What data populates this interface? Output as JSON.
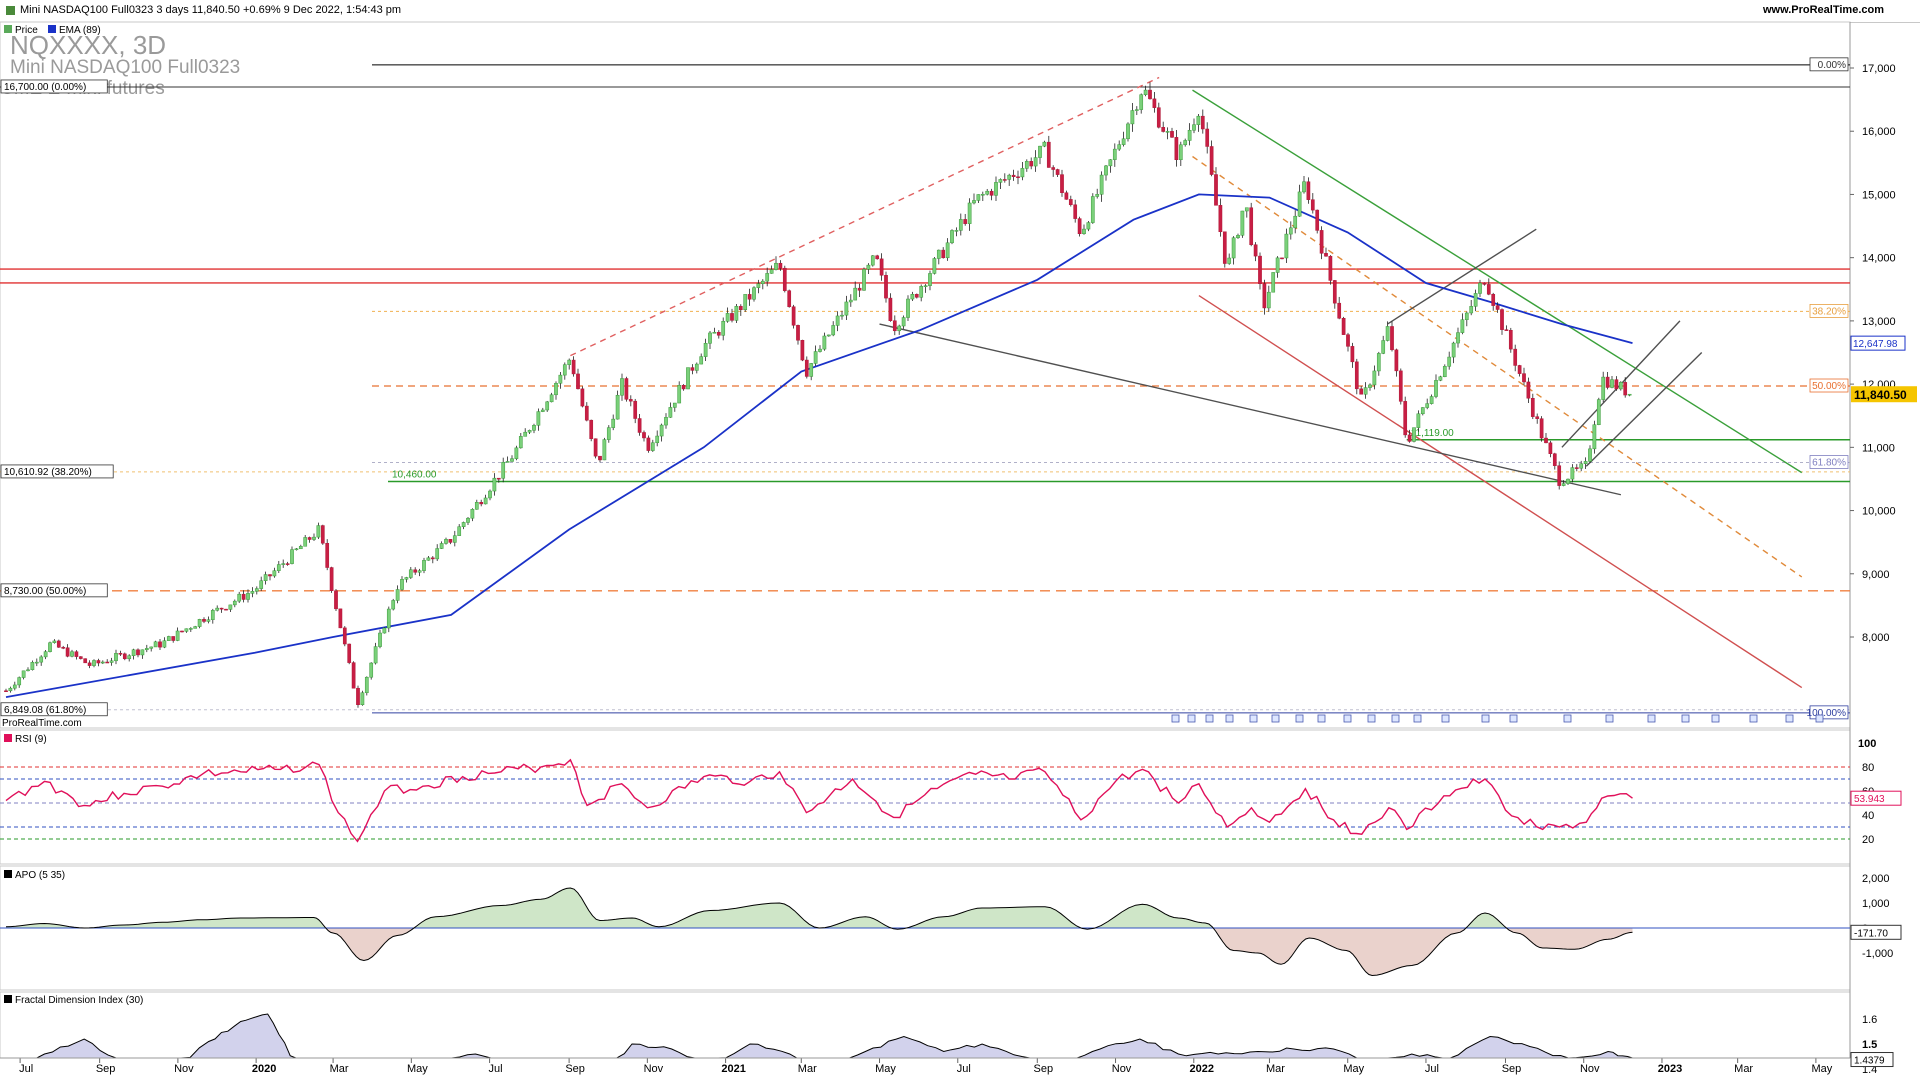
{
  "header": {
    "title": "Mini NASDAQ100 Full0323 3 days 11,840.50 +0.69% 9 Dec 2022, 1:54:43 pm",
    "site": "www.ProRealTime.com"
  },
  "main_panel": {
    "legend": [
      {
        "label": "Price",
        "color": "#5aaa5a"
      },
      {
        "label": "EMA (89)",
        "color": "#1a32c8"
      }
    ],
    "watermark": {
      "symbol": "NQXXXX, 3D",
      "name": "Mini NASDAQ100 Full0323",
      "exchange": "CME E-mini futures"
    },
    "credit": "ProRealTime.com",
    "left_labels": [
      "16,700.00 (0.00%)",
      "10,610.92 (38.20%)",
      "8,730.00 (50.00%)",
      "6,849.08 (61.80%)"
    ],
    "fib_right_labels": [
      "0.00%",
      "38.20%",
      "50.00%",
      "61.80%",
      "100.00%"
    ],
    "line_labels": [
      "11,119.00",
      "10,460.00"
    ],
    "price_ticks": [
      "17,000",
      "16,000",
      "15,000",
      "14,000",
      "13,000",
      "12,000",
      "11,000",
      "10,000",
      "9,000",
      "8,000"
    ],
    "ema_value": "12,647.98",
    "last_price": "11,840.50"
  },
  "rsi_panel": {
    "title": "RSI (9)",
    "ticks": [
      "100",
      "80",
      "60",
      "40",
      "20"
    ],
    "value": "53.943"
  },
  "apo_panel": {
    "title": "APO (5 35)",
    "ticks": [
      "2,000",
      "1,000",
      "0",
      "-1,000"
    ],
    "value": "-171.70"
  },
  "fdi_panel": {
    "title": "Fractal Dimension Index (30)",
    "ticks": [
      "1.6",
      "1.5",
      "1.4"
    ],
    "value": "1.4379"
  },
  "x_axis": [
    {
      "label": "Jul",
      "bold": false
    },
    {
      "label": "Sep",
      "bold": false
    },
    {
      "label": "Nov",
      "bold": false
    },
    {
      "label": "2020",
      "bold": true
    },
    {
      "label": "Mar",
      "bold": false
    },
    {
      "label": "May",
      "bold": false
    },
    {
      "label": "Jul",
      "bold": false
    },
    {
      "label": "Sep",
      "bold": false
    },
    {
      "label": "Nov",
      "bold": false
    },
    {
      "label": "2021",
      "bold": true
    },
    {
      "label": "Mar",
      "bold": false
    },
    {
      "label": "May",
      "bold": false
    },
    {
      "label": "Jul",
      "bold": false
    },
    {
      "label": "Sep",
      "bold": false
    },
    {
      "label": "Nov",
      "bold": false
    },
    {
      "label": "2022",
      "bold": true
    },
    {
      "label": "Mar",
      "bold": false
    },
    {
      "label": "May",
      "bold": false
    },
    {
      "label": "Jul",
      "bold": false
    },
    {
      "label": "Sep",
      "bold": false
    },
    {
      "label": "Nov",
      "bold": false
    },
    {
      "label": "2023",
      "bold": true
    },
    {
      "label": "Mar",
      "bold": false
    },
    {
      "label": "May",
      "bold": false
    }
  ],
  "chart_data": {
    "type": "candlestick",
    "instrument": "Mini NASDAQ100 Full0323",
    "timeframe": "3D",
    "ylim": [
      6800,
      17200
    ],
    "price_path": [
      [
        "2019-06-20",
        7150
      ],
      [
        "2019-07-25",
        7900
      ],
      [
        "2019-08-25",
        7550
      ],
      [
        "2019-09-25",
        7750
      ],
      [
        "2019-10-20",
        7900
      ],
      [
        "2019-11-25",
        8350
      ],
      [
        "2019-12-31",
        8750
      ],
      [
        "2020-02-19",
        9700
      ],
      [
        "2020-03-20",
        6950
      ],
      [
        "2020-04-20",
        8800
      ],
      [
        "2020-06-01",
        9550
      ],
      [
        "2020-07-20",
        10900
      ],
      [
        "2020-09-02",
        12420
      ],
      [
        "2020-09-23",
        10700
      ],
      [
        "2020-10-12",
        12000
      ],
      [
        "2020-11-01",
        11000
      ],
      [
        "2020-12-15",
        12600
      ],
      [
        "2021-02-12",
        13900
      ],
      [
        "2021-03-05",
        12200
      ],
      [
        "2021-04-28",
        14000
      ],
      [
        "2021-05-12",
        12900
      ],
      [
        "2021-07-15",
        14900
      ],
      [
        "2021-09-07",
        15700
      ],
      [
        "2021-10-05",
        14400
      ],
      [
        "2021-11-22",
        16700
      ],
      [
        "2021-12-20",
        15600
      ],
      [
        "2022-01-05",
        16400
      ],
      [
        "2022-01-27",
        13800
      ],
      [
        "2022-02-10",
        14900
      ],
      [
        "2022-02-24",
        13200
      ],
      [
        "2022-03-29",
        15200
      ],
      [
        "2022-05-12",
        11700
      ],
      [
        "2022-06-02",
        12900
      ],
      [
        "2022-06-16",
        11070
      ],
      [
        "2022-08-16",
        13700
      ],
      [
        "2022-09-30",
        11150
      ],
      [
        "2022-10-13",
        10480
      ],
      [
        "2022-11-03",
        10700
      ],
      [
        "2022-11-15",
        12100
      ],
      [
        "2022-12-09",
        11840
      ]
    ],
    "ema89_path": [
      [
        "2019-06-20",
        7050
      ],
      [
        "2019-12-31",
        7750
      ],
      [
        "2020-03-01",
        8000
      ],
      [
        "2020-06-01",
        8350
      ],
      [
        "2020-09-01",
        9700
      ],
      [
        "2020-12-15",
        11000
      ],
      [
        "2021-03-01",
        12200
      ],
      [
        "2021-06-01",
        12850
      ],
      [
        "2021-09-01",
        13650
      ],
      [
        "2021-11-15",
        14600
      ],
      [
        "2022-01-05",
        15000
      ],
      [
        "2022-03-01",
        14950
      ],
      [
        "2022-05-01",
        14400
      ],
      [
        "2022-07-01",
        13600
      ],
      [
        "2022-08-20",
        13300
      ],
      [
        "2022-10-15",
        12950
      ],
      [
        "2022-12-09",
        12648
      ]
    ],
    "fibonacci": [
      {
        "level": "0.00%",
        "price": 16700
      },
      {
        "level": "38.20%",
        "price": 10610.92
      },
      {
        "level": "50.00%",
        "price": 8730
      },
      {
        "level": "61.80%",
        "price": 6849.08
      }
    ],
    "fib_right": [
      {
        "level": "0.00%",
        "price": 17050
      },
      {
        "level": "38.20%",
        "price": 13150
      },
      {
        "level": "50.00%",
        "price": 11970
      },
      {
        "level": "61.80%",
        "price": 10760
      },
      {
        "level": "100.00%",
        "price": 6800
      }
    ],
    "support_lines": [
      {
        "label": "11,119.00",
        "price": 11119
      },
      {
        "label": "10,460.00",
        "price": 10460
      }
    ],
    "resistance_lines": [
      13820,
      13600
    ],
    "trendlines": [
      {
        "color": "#3aa03a",
        "style": "solid",
        "from": [
          "2021-12-31",
          16650
        ],
        "to": [
          "2023-04-20",
          10600
        ]
      },
      {
        "color": "#e06060",
        "style": "dashed",
        "from": [
          "2020-09-02",
          12450
        ],
        "to": [
          "2021-12-05",
          16850
        ]
      },
      {
        "color": "#e08a3a",
        "style": "dashed",
        "from": [
          "2021-12-31",
          15600
        ],
        "to": [
          "2023-04-20",
          8950
        ]
      },
      {
        "color": "#d05050",
        "style": "solid",
        "from": [
          "2022-01-05",
          13400
        ],
        "to": [
          "2023-04-20",
          7200
        ]
      },
      {
        "color": "#505050",
        "style": "solid",
        "from": [
          "2021-05-01",
          12950
        ],
        "to": [
          "2022-11-30",
          10250
        ]
      },
      {
        "color": "#505050",
        "style": "solid",
        "from": [
          "2022-06-01",
          12950
        ],
        "to": [
          "2022-09-25",
          14450
        ]
      },
      {
        "color": "#505050",
        "style": "solid",
        "from": [
          "2022-10-15",
          11000
        ],
        "to": [
          "2023-01-15",
          13000
        ]
      },
      {
        "color": "#505050",
        "style": "solid",
        "from": [
          "2022-11-03",
          10700
        ],
        "to": [
          "2023-02-01",
          12500
        ]
      }
    ],
    "rsi": {
      "period": 9,
      "last": 53.943,
      "levels": [
        80,
        70,
        50,
        30,
        20
      ],
      "path": [
        [
          "2019-06-20",
          52
        ],
        [
          "2019-07-20",
          68
        ],
        [
          "2019-08-20",
          48
        ],
        [
          "2019-09-20",
          58
        ],
        [
          "2019-10-20",
          64
        ],
        [
          "2019-11-20",
          74
        ],
        [
          "2019-12-20",
          76
        ],
        [
          "2020-01-20",
          78
        ],
        [
          "2020-02-19",
          82
        ],
        [
          "2020-03-05",
          42
        ],
        [
          "2020-03-20",
          18
        ],
        [
          "2020-04-10",
          60
        ],
        [
          "2020-05-10",
          64
        ],
        [
          "2020-06-10",
          72
        ],
        [
          "2020-07-10",
          76
        ],
        [
          "2020-08-10",
          80
        ],
        [
          "2020-09-02",
          86
        ],
        [
          "2020-09-15",
          48
        ],
        [
          "2020-10-12",
          66
        ],
        [
          "2020-11-01",
          46
        ],
        [
          "2020-12-15",
          72
        ],
        [
          "2021-01-20",
          68
        ],
        [
          "2021-02-12",
          76
        ],
        [
          "2021-03-05",
          42
        ],
        [
          "2021-04-10",
          70
        ],
        [
          "2021-05-12",
          38
        ],
        [
          "2021-06-15",
          62
        ],
        [
          "2021-07-15",
          74
        ],
        [
          "2021-08-10",
          70
        ],
        [
          "2021-09-07",
          76
        ],
        [
          "2021-10-05",
          36
        ],
        [
          "2021-11-01",
          68
        ],
        [
          "2021-11-22",
          78
        ],
        [
          "2021-12-20",
          50
        ],
        [
          "2022-01-05",
          66
        ],
        [
          "2022-01-27",
          30
        ],
        [
          "2022-02-15",
          46
        ],
        [
          "2022-03-01",
          34
        ],
        [
          "2022-03-29",
          62
        ],
        [
          "2022-04-20",
          36
        ],
        [
          "2022-05-12",
          24
        ],
        [
          "2022-06-02",
          46
        ],
        [
          "2022-06-16",
          28
        ],
        [
          "2022-07-15",
          56
        ],
        [
          "2022-08-16",
          70
        ],
        [
          "2022-09-01",
          44
        ],
        [
          "2022-09-30",
          28
        ],
        [
          "2022-10-13",
          30
        ],
        [
          "2022-11-03",
          34
        ],
        [
          "2022-11-15",
          54
        ],
        [
          "2022-12-09",
          54
        ]
      ]
    },
    "apo": {
      "fast": 5,
      "slow": 35,
      "last": -171.7,
      "path": [
        [
          "2019-06-20",
          50
        ],
        [
          "2019-07-20",
          180
        ],
        [
          "2019-08-20",
          0
        ],
        [
          "2019-09-20",
          120
        ],
        [
          "2019-10-20",
          230
        ],
        [
          "2019-11-20",
          330
        ],
        [
          "2019-12-20",
          400
        ],
        [
          "2020-02-15",
          420
        ],
        [
          "2020-03-01",
          -200
        ],
        [
          "2020-03-25",
          -1300
        ],
        [
          "2020-04-20",
          -300
        ],
        [
          "2020-05-20",
          450
        ],
        [
          "2020-07-10",
          900
        ],
        [
          "2020-08-10",
          1150
        ],
        [
          "2020-09-02",
          1600
        ],
        [
          "2020-09-25",
          300
        ],
        [
          "2020-10-20",
          400
        ],
        [
          "2020-11-10",
          50
        ],
        [
          "2020-12-20",
          700
        ],
        [
          "2021-02-12",
          1000
        ],
        [
          "2021-03-15",
          0
        ],
        [
          "2021-04-20",
          450
        ],
        [
          "2021-05-15",
          -50
        ],
        [
          "2021-06-20",
          450
        ],
        [
          "2021-07-20",
          800
        ],
        [
          "2021-09-07",
          850
        ],
        [
          "2021-10-10",
          -50
        ],
        [
          "2021-11-22",
          950
        ],
        [
          "2021-12-20",
          400
        ],
        [
          "2022-01-10",
          200
        ],
        [
          "2022-02-01",
          -900
        ],
        [
          "2022-02-20",
          -1000
        ],
        [
          "2022-03-10",
          -1450
        ],
        [
          "2022-04-01",
          -400
        ],
        [
          "2022-04-30",
          -900
        ],
        [
          "2022-05-20",
          -1900
        ],
        [
          "2022-06-20",
          -1500
        ],
        [
          "2022-07-25",
          -200
        ],
        [
          "2022-08-16",
          600
        ],
        [
          "2022-09-10",
          -200
        ],
        [
          "2022-09-30",
          -800
        ],
        [
          "2022-10-25",
          -850
        ],
        [
          "2022-11-20",
          -450
        ],
        [
          "2022-12-09",
          -172
        ]
      ]
    },
    "fdi": {
      "period": 30,
      "last": 1.4379,
      "path": [
        [
          "2019-06-20",
          1.38
        ],
        [
          "2019-07-20",
          1.46
        ],
        [
          "2019-08-20",
          1.52
        ],
        [
          "2019-09-20",
          1.41
        ],
        [
          "2019-10-20",
          1.36
        ],
        [
          "2019-11-25",
          1.51
        ],
        [
          "2019-12-20",
          1.59
        ],
        [
          "2020-01-10",
          1.62
        ],
        [
          "2020-02-01",
          1.42
        ],
        [
          "2020-03-01",
          1.3
        ],
        [
          "2020-04-15",
          1.34
        ],
        [
          "2020-05-20",
          1.42
        ],
        [
          "2020-06-20",
          1.46
        ],
        [
          "2020-07-20",
          1.41
        ],
        [
          "2020-08-20",
          1.4
        ],
        [
          "2020-09-20",
          1.34
        ],
        [
          "2020-10-20",
          1.5
        ],
        [
          "2020-11-20",
          1.48
        ],
        [
          "2020-12-20",
          1.42
        ],
        [
          "2021-01-20",
          1.5
        ],
        [
          "2021-02-20",
          1.46
        ],
        [
          "2021-03-20",
          1.38
        ],
        [
          "2021-04-20",
          1.47
        ],
        [
          "2021-05-20",
          1.53
        ],
        [
          "2021-06-20",
          1.47
        ],
        [
          "2021-07-20",
          1.5
        ],
        [
          "2021-08-20",
          1.45
        ],
        [
          "2021-09-20",
          1.4
        ],
        [
          "2021-10-20",
          1.48
        ],
        [
          "2021-11-20",
          1.52
        ],
        [
          "2021-12-20",
          1.46
        ],
        [
          "2022-01-20",
          1.46
        ],
        [
          "2022-02-20",
          1.47
        ],
        [
          "2022-03-20",
          1.48
        ],
        [
          "2022-04-20",
          1.48
        ],
        [
          "2022-05-20",
          1.42
        ],
        [
          "2022-06-20",
          1.46
        ],
        [
          "2022-07-20",
          1.44
        ],
        [
          "2022-08-20",
          1.53
        ],
        [
          "2022-09-20",
          1.49
        ],
        [
          "2022-10-20",
          1.44
        ],
        [
          "2022-11-20",
          1.47
        ],
        [
          "2022-12-09",
          1.44
        ]
      ]
    }
  }
}
